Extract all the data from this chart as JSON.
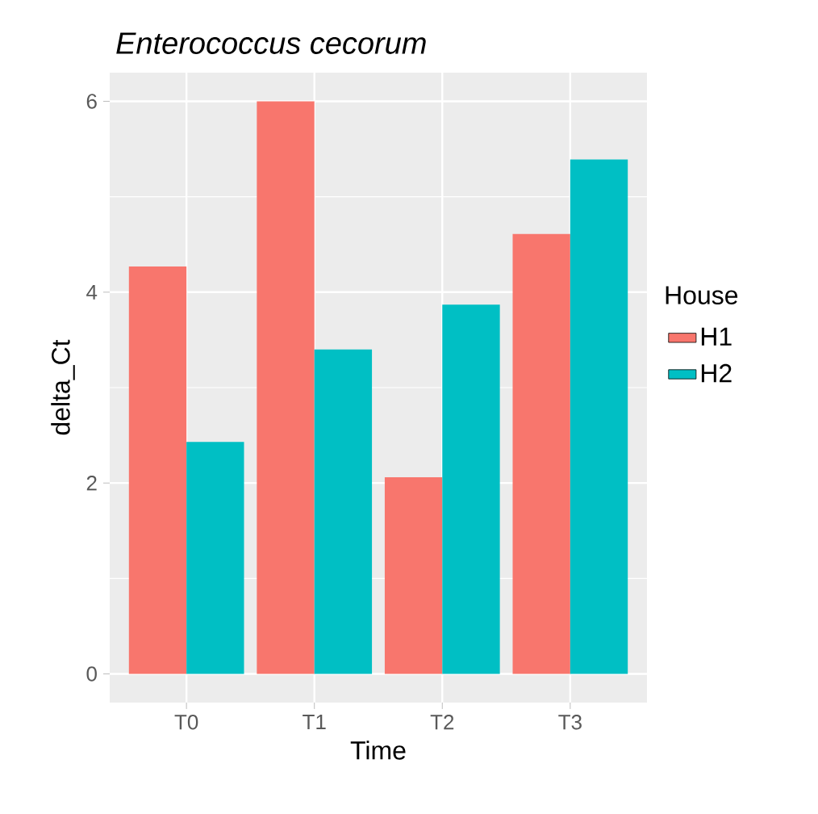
{
  "chart_data": {
    "type": "bar",
    "title": "Enterococcus cecorum",
    "xlabel": "Time",
    "ylabel": "delta_Ct",
    "legend_title": "House",
    "categories": [
      "T0",
      "T1",
      "T2",
      "T3"
    ],
    "series": [
      {
        "name": "H1",
        "color": "#f8766d",
        "values": [
          4.27,
          6.0,
          2.06,
          4.61
        ]
      },
      {
        "name": "H2",
        "color": "#00bfc4",
        "values": [
          2.43,
          3.4,
          3.87,
          5.39
        ]
      }
    ],
    "ylim": [
      -0.3,
      6.3
    ],
    "yticks": [
      0,
      2,
      4,
      6
    ],
    "grid": true,
    "legend": "right"
  }
}
